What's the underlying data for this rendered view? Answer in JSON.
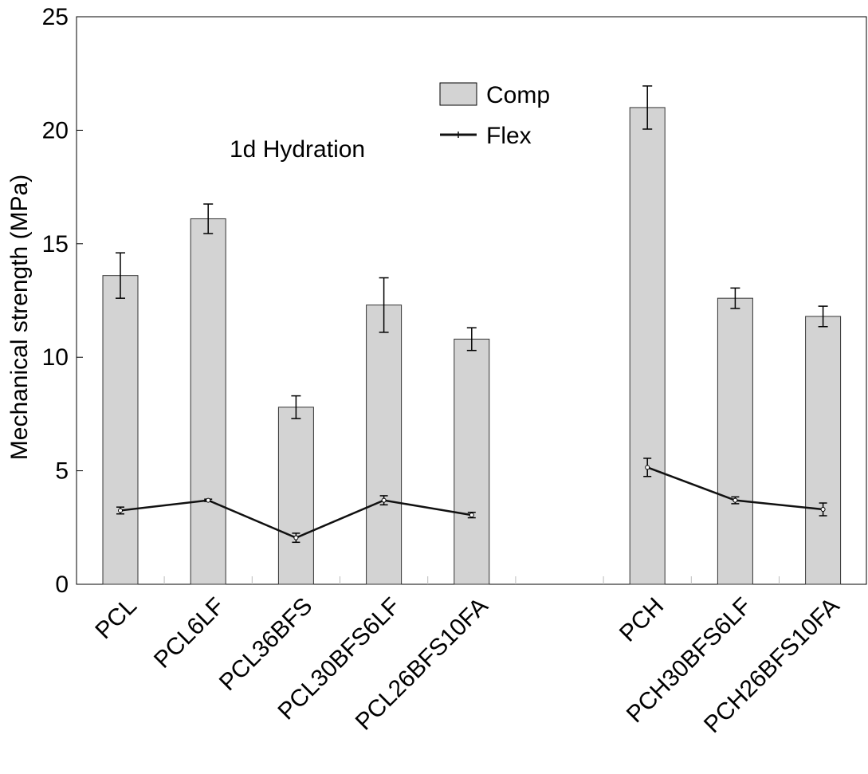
{
  "chart_data": {
    "type": "bar",
    "ylabel": "Mechanical strength (MPa)",
    "ylim": [
      0,
      25
    ],
    "yticks": [
      0,
      5,
      10,
      15,
      20,
      25
    ],
    "annotation": "1d Hydration",
    "legend_position": "top-center",
    "grid": false,
    "categories": [
      "PCL",
      "PCL6LF",
      "PCL36BFS",
      "PCL30BFS6LF",
      "PCL26BFS10FA",
      "PCH",
      "PCH30BFS6LF",
      "PCH26BFS10FA"
    ],
    "groups": [
      {
        "categories": [
          "PCL",
          "PCL6LF",
          "PCL36BFS",
          "PCL30BFS6LF",
          "PCL26BFS10FA"
        ]
      },
      {
        "categories": [
          "PCH",
          "PCH30BFS6LF",
          "PCH26BFS10FA"
        ]
      }
    ],
    "series": [
      {
        "name": "Comp",
        "kind": "bar",
        "color": "#d3d3d3",
        "values": [
          13.6,
          16.1,
          7.8,
          12.3,
          10.8,
          21.0,
          12.6,
          11.8
        ],
        "errors": [
          1.0,
          0.65,
          0.5,
          1.2,
          0.5,
          0.95,
          0.45,
          0.45
        ]
      },
      {
        "name": "Flex",
        "kind": "line",
        "color": "#111111",
        "values": [
          3.25,
          3.7,
          2.05,
          3.7,
          3.05,
          5.15,
          3.7,
          3.3
        ],
        "errors": [
          0.15,
          0.05,
          0.2,
          0.2,
          0.12,
          0.4,
          0.15,
          0.28
        ]
      }
    ]
  }
}
